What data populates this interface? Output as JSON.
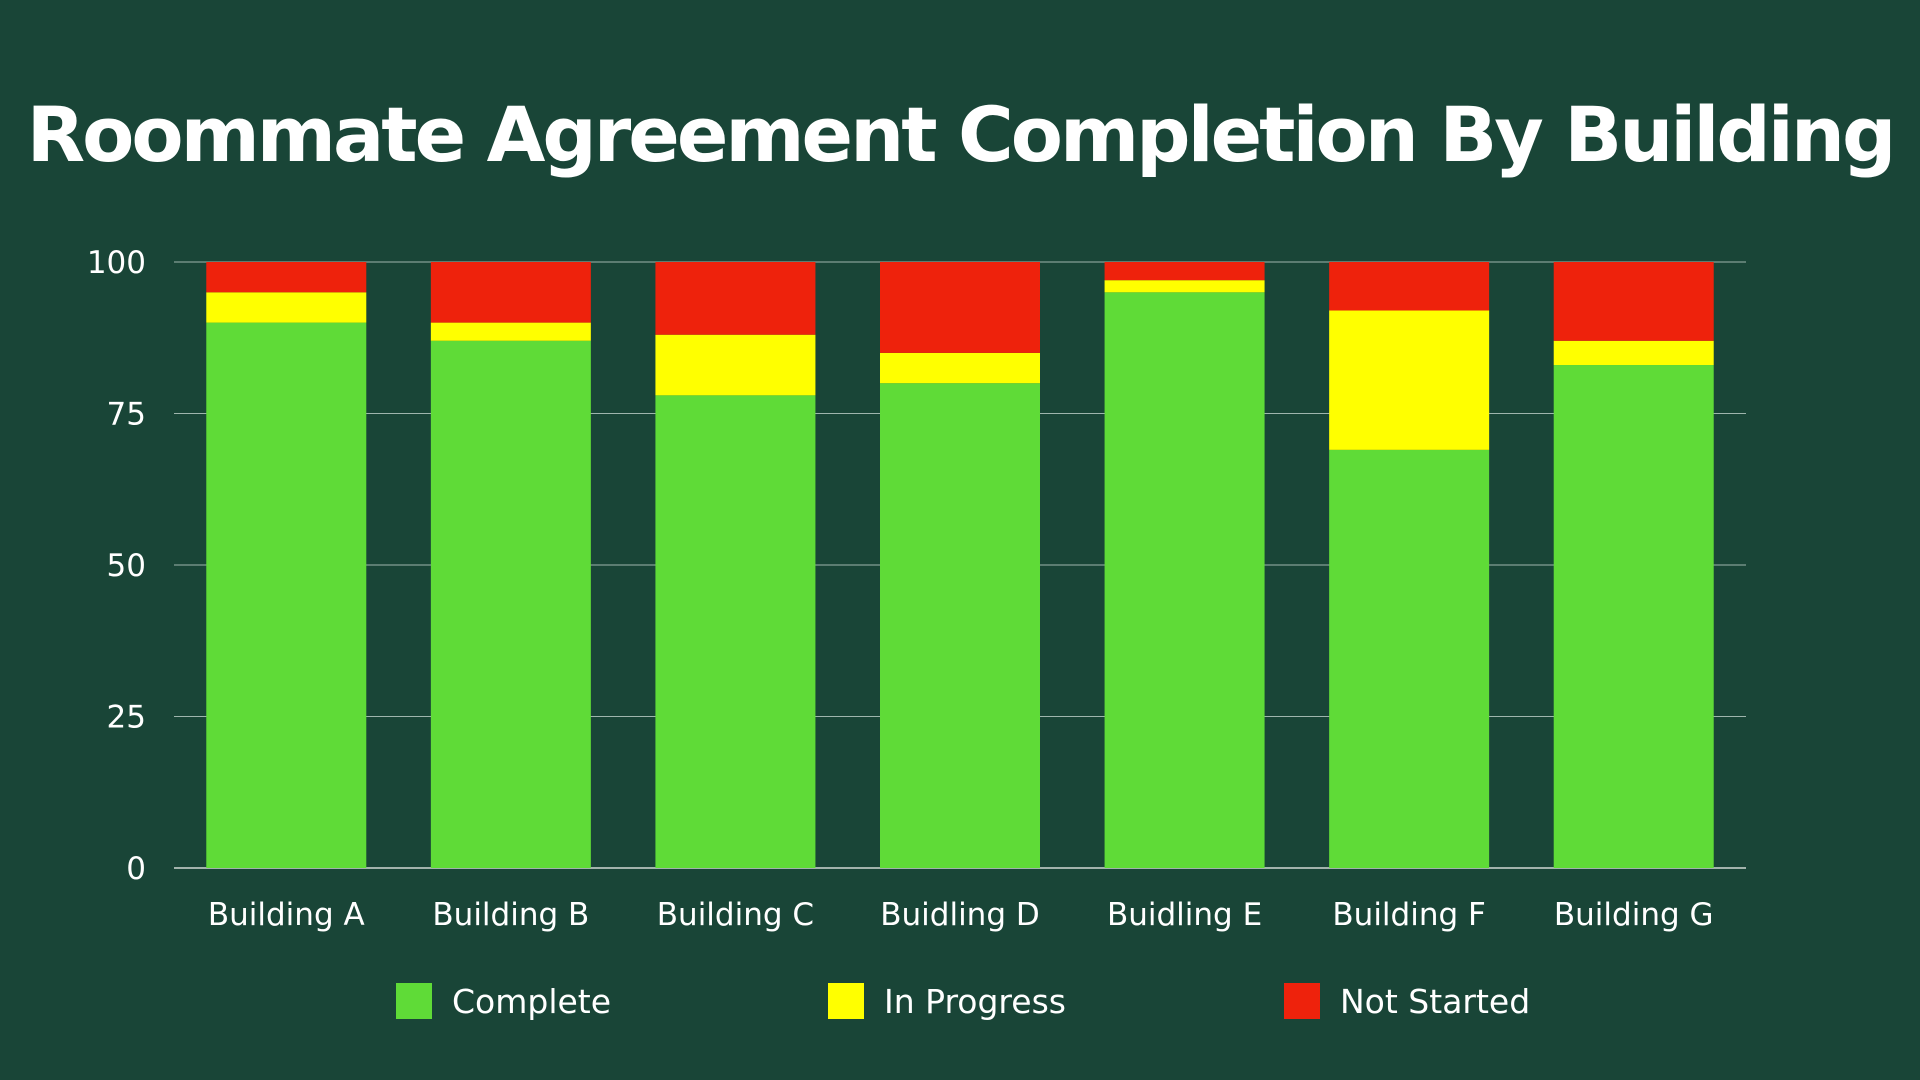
{
  "title": "Roommate Agreement Completion By Building",
  "colors": {
    "background": "#194537",
    "complete": "#5fdb37",
    "in_progress": "#ffff00",
    "not_started": "#ee220c",
    "grid": "#9fb5ad",
    "text": "#ffffff"
  },
  "chart_data": {
    "type": "bar",
    "stacked": true,
    "title": "Roommate Agreement Completion By Building",
    "xlabel": "",
    "ylabel": "",
    "ylim": [
      0,
      100
    ],
    "yticks": [
      0,
      25,
      50,
      75,
      100
    ],
    "grid": true,
    "legend_position": "bottom",
    "categories": [
      "Building A",
      "Building B",
      "Building C",
      "Buidling D",
      "Buidling E",
      "Building F",
      "Building G"
    ],
    "series": [
      {
        "name": "Complete",
        "color": "#5fdb37",
        "values": [
          90,
          87,
          78,
          80,
          95,
          69,
          83
        ]
      },
      {
        "name": "In Progress",
        "color": "#ffff00",
        "values": [
          5,
          3,
          10,
          5,
          2,
          23,
          4
        ]
      },
      {
        "name": "Not Started",
        "color": "#ee220c",
        "values": [
          5,
          10,
          12,
          15,
          3,
          8,
          13
        ]
      }
    ]
  }
}
